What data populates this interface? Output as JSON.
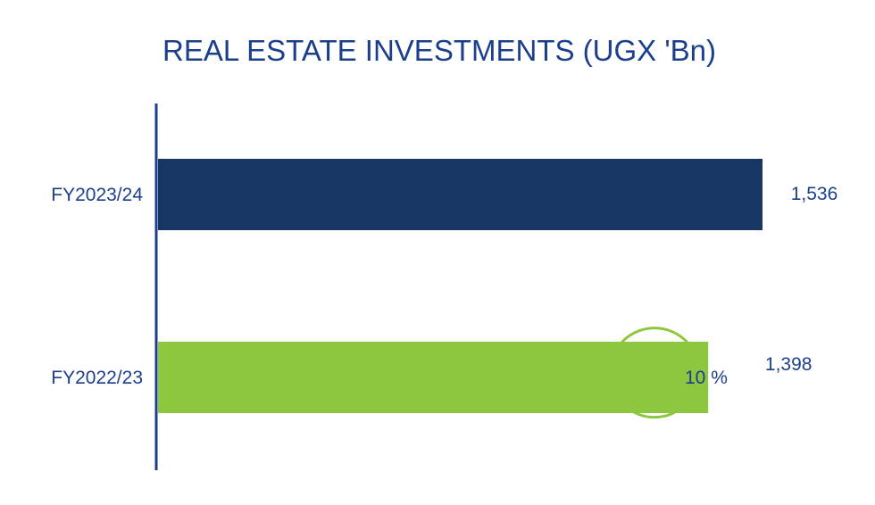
{
  "chart_data": {
    "type": "bar",
    "orientation": "horizontal",
    "title": "REAL ESTATE INVESTMENTS (UGX 'Bn)",
    "xlabel": "",
    "ylabel": "",
    "categories": [
      "FY2023/24",
      "FY2022/23"
    ],
    "values": [
      1536,
      1398
    ],
    "value_labels": [
      "1,536",
      "1,398"
    ],
    "bar_colors": [
      "#173663",
      "#8dc63f"
    ],
    "grid": false,
    "legend": "none"
  },
  "growth": {
    "label": "10 %",
    "icon": "up-arrow-icon",
    "color": "#8dc63f"
  },
  "colors": {
    "title": "#1c3f8c",
    "axis": "#1c3f8c",
    "text": "#1c3f8c"
  }
}
